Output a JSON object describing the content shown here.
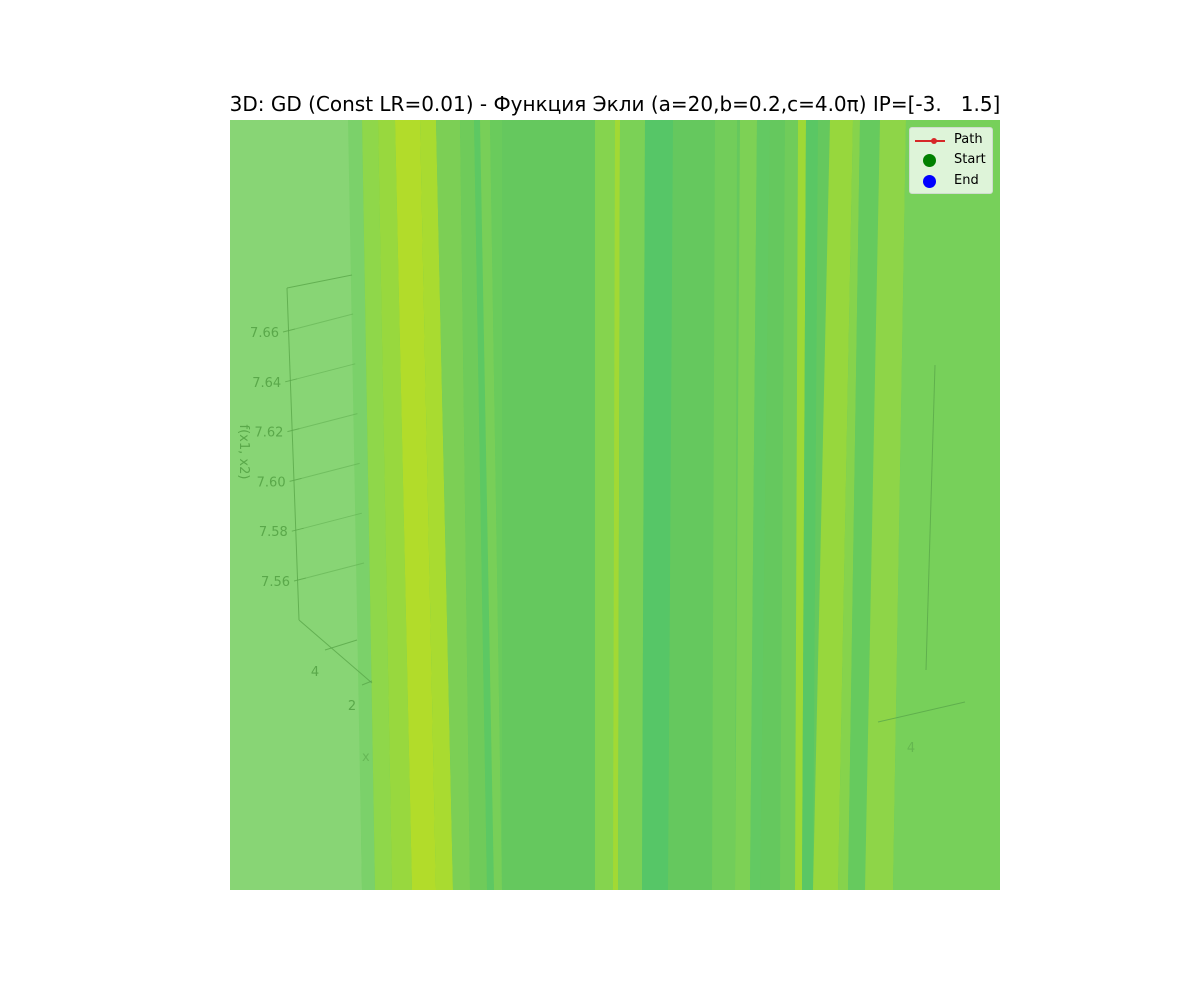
{
  "chart_data": {
    "type": "surface3d",
    "title": "3D: GD (Const LR=0.01) - Функция Экли (a=20,b=0.2,c=4.0π) IP=[-3.   1.5]",
    "zlabel": "f(x1, x2)",
    "z_ticks": [
      "7.66",
      "7.64",
      "7.62",
      "7.60",
      "7.58",
      "7.56"
    ],
    "x_ticks": [
      "4",
      "2"
    ],
    "right_ticks": [
      "4"
    ],
    "zlim": [
      7.55,
      7.67
    ],
    "legend": {
      "placement": "top-right",
      "entries": [
        {
          "label": "Path",
          "color": "#d62728",
          "marker": "line"
        },
        {
          "label": "Start",
          "color": "#008000",
          "marker": "dot"
        },
        {
          "label": "End",
          "color": "#0000ff",
          "marker": "dot"
        }
      ]
    },
    "surface_colormap": "viridis",
    "grid": true
  }
}
